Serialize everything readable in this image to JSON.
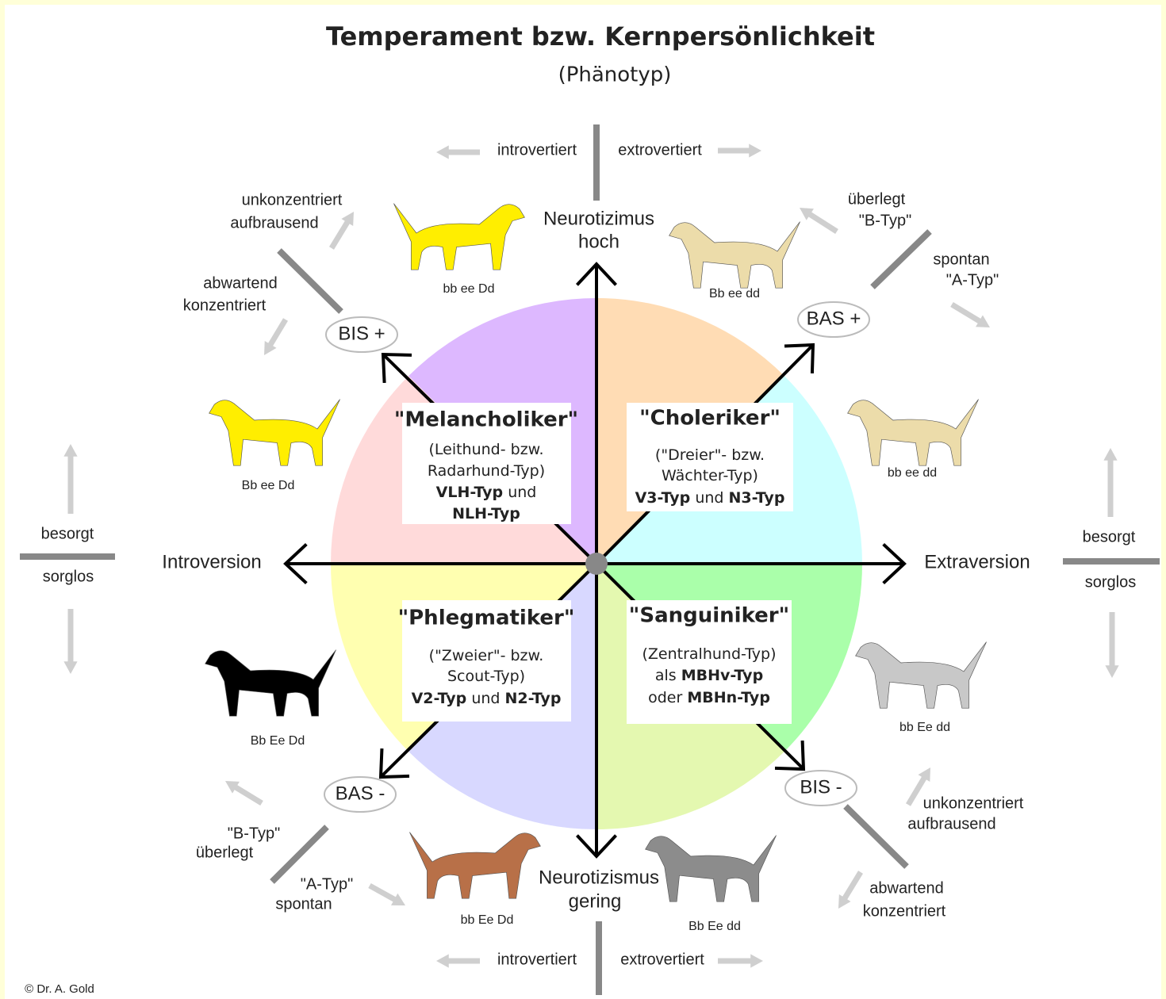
{
  "header": {
    "title": "Temperament bzw. Kernpersönlichkeit",
    "subtitle": "(Phänotyp)"
  },
  "axes": {
    "top": [
      "Neurotizimus",
      "hoch"
    ],
    "bottom": [
      "Neurotizismus",
      "gering"
    ],
    "left": "Introversion",
    "right": "Extraversion"
  },
  "quadrants": [
    {
      "name": "\"Melancholiker\"",
      "lines": [
        [
          {
            "text": "(Leithund- bzw.",
            "bold": false
          }
        ],
        [
          {
            "text": "Radarhund-Typ)",
            "bold": false
          }
        ],
        [
          {
            "text": "VLH-Typ",
            "bold": true
          },
          {
            "text": " und",
            "bold": false
          }
        ],
        [
          {
            "text": "NLH-Typ",
            "bold": true
          }
        ]
      ]
    },
    {
      "name": "\"Choleriker\"",
      "lines": [
        [
          {
            "text": "(\"Dreier\"- bzw.",
            "bold": false
          }
        ],
        [
          {
            "text": "Wächter-Typ)",
            "bold": false
          }
        ],
        [
          {
            "text": "V3-Typ",
            "bold": true
          },
          {
            "text": " und ",
            "bold": false
          },
          {
            "text": "N3-Typ",
            "bold": true
          }
        ]
      ]
    },
    {
      "name": "\"Phlegmatiker\"",
      "lines": [
        [
          {
            "text": "(\"Zweier\"- bzw.",
            "bold": false
          }
        ],
        [
          {
            "text": "Scout-Typ)",
            "bold": false
          }
        ],
        [
          {
            "text": "V2-Typ",
            "bold": true
          },
          {
            "text": " und ",
            "bold": false
          },
          {
            "text": "N2-Typ",
            "bold": true
          }
        ]
      ]
    },
    {
      "name": "\"Sanguiniker\"",
      "lines": [
        [
          {
            "text": "(Zentralhund-Typ)",
            "bold": false
          }
        ],
        [
          {
            "text": "als ",
            "bold": false
          },
          {
            "text": "MBHv-Typ",
            "bold": true
          }
        ],
        [
          {
            "text": "oder ",
            "bold": false
          },
          {
            "text": "MBHn-Typ",
            "bold": true
          }
        ]
      ]
    }
  ],
  "systems": [
    "BIS +",
    "BAS +",
    "BAS -",
    "BIS -"
  ],
  "edges": {
    "top": [
      "introvertiert",
      "extrovertiert"
    ],
    "bottom": [
      "introvertiert",
      "extrovertiert"
    ],
    "left": [
      "besorgt",
      "sorglos"
    ],
    "right": [
      "besorgt",
      "sorglos"
    ]
  },
  "diagonal_labels": [
    [
      "unkonzentriert",
      "aufbrausend"
    ],
    [
      "abwartend",
      "konzentriert"
    ],
    [
      "überlegt",
      "\"B-Typ\""
    ],
    [
      "spontan",
      "\"A-Typ\""
    ],
    [
      "\"B-Typ\"",
      "überlegt"
    ],
    [
      "\"A-Typ\"",
      "spontan"
    ],
    [
      "unkonzentriert",
      "aufbrausend"
    ],
    [
      "abwartend",
      "konzentriert"
    ]
  ],
  "dogs": [
    {
      "genotype": "bb ee Dd",
      "color": "#ffee00"
    },
    {
      "genotype": "Bb ee dd",
      "color": "#ecdcaa"
    },
    {
      "genotype": "Bb ee Dd",
      "color": "#ffee00"
    },
    {
      "genotype": "bb ee dd",
      "color": "#ecdcaa"
    },
    {
      "genotype": "Bb Ee Dd",
      "color": "#000000"
    },
    {
      "genotype": "bb Ee dd",
      "color": "#c8c8c8"
    },
    {
      "genotype": "bb Ee Dd",
      "color": "#b87048"
    },
    {
      "genotype": "Bb Ee dd",
      "color": "#8c8c8c"
    }
  ],
  "footer": "© Dr. A. Gold"
}
